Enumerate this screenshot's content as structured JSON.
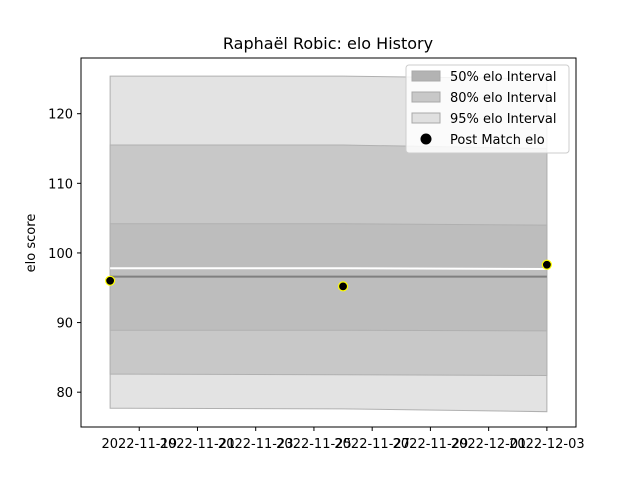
{
  "chart_data": {
    "type": "area",
    "title": "Raphaël Robic: elo History",
    "xlabel": "",
    "ylabel": "elo score",
    "x": [
      "2022-11-18",
      "2022-11-26",
      "2022-12-03"
    ],
    "x_tick_labels": [
      "2022-11-19",
      "2022-11-21",
      "2022-11-23",
      "2022-11-25",
      "2022-11-27",
      "2022-11-29",
      "2022-12-01",
      "2022-12-03"
    ],
    "y_ticks": [
      80,
      90,
      100,
      110,
      120
    ],
    "xlim": [
      "2022-11-17",
      "2022-12-04"
    ],
    "ylim": [
      75,
      128
    ],
    "grid": false,
    "legend_position": "top-right",
    "series": [
      {
        "name": "95% elo Interval",
        "kind": "band",
        "color": "#e3e3e3",
        "lower": [
          77.7,
          77.6,
          77.2
        ],
        "upper": [
          125.4,
          125.4,
          125.0
        ]
      },
      {
        "name": "80% elo Interval",
        "kind": "band",
        "color": "#c8c8c8",
        "lower": [
          82.6,
          82.5,
          82.4
        ],
        "upper": [
          115.5,
          115.5,
          115.0
        ]
      },
      {
        "name": "50% elo Interval",
        "kind": "band",
        "color": "#bdbdbd",
        "lower": [
          88.9,
          88.9,
          88.8
        ],
        "upper": [
          104.2,
          104.2,
          104.0
        ]
      },
      {
        "kind": "line",
        "color": "#7f7f7f",
        "values": [
          96.6,
          96.6,
          96.6
        ]
      },
      {
        "kind": "line",
        "color": "#ffffff",
        "values": [
          97.8,
          97.8,
          97.7
        ]
      },
      {
        "name": "Post Match elo",
        "kind": "scatter",
        "color": "#000000",
        "edge": "#ffff00",
        "x": [
          "2022-11-18",
          "2022-11-26",
          "2022-12-03"
        ],
        "values": [
          96.0,
          95.2,
          98.3
        ]
      }
    ],
    "legend_items": [
      {
        "label": "50% elo Interval",
        "swatch": "band",
        "color": "#b3b3b3"
      },
      {
        "label": "80% elo Interval",
        "swatch": "band",
        "color": "#c8c8c8"
      },
      {
        "label": "95% elo Interval",
        "swatch": "band",
        "color": "#e0e0e0"
      },
      {
        "label": "Post Match elo",
        "swatch": "dot",
        "color": "#000000"
      }
    ]
  }
}
